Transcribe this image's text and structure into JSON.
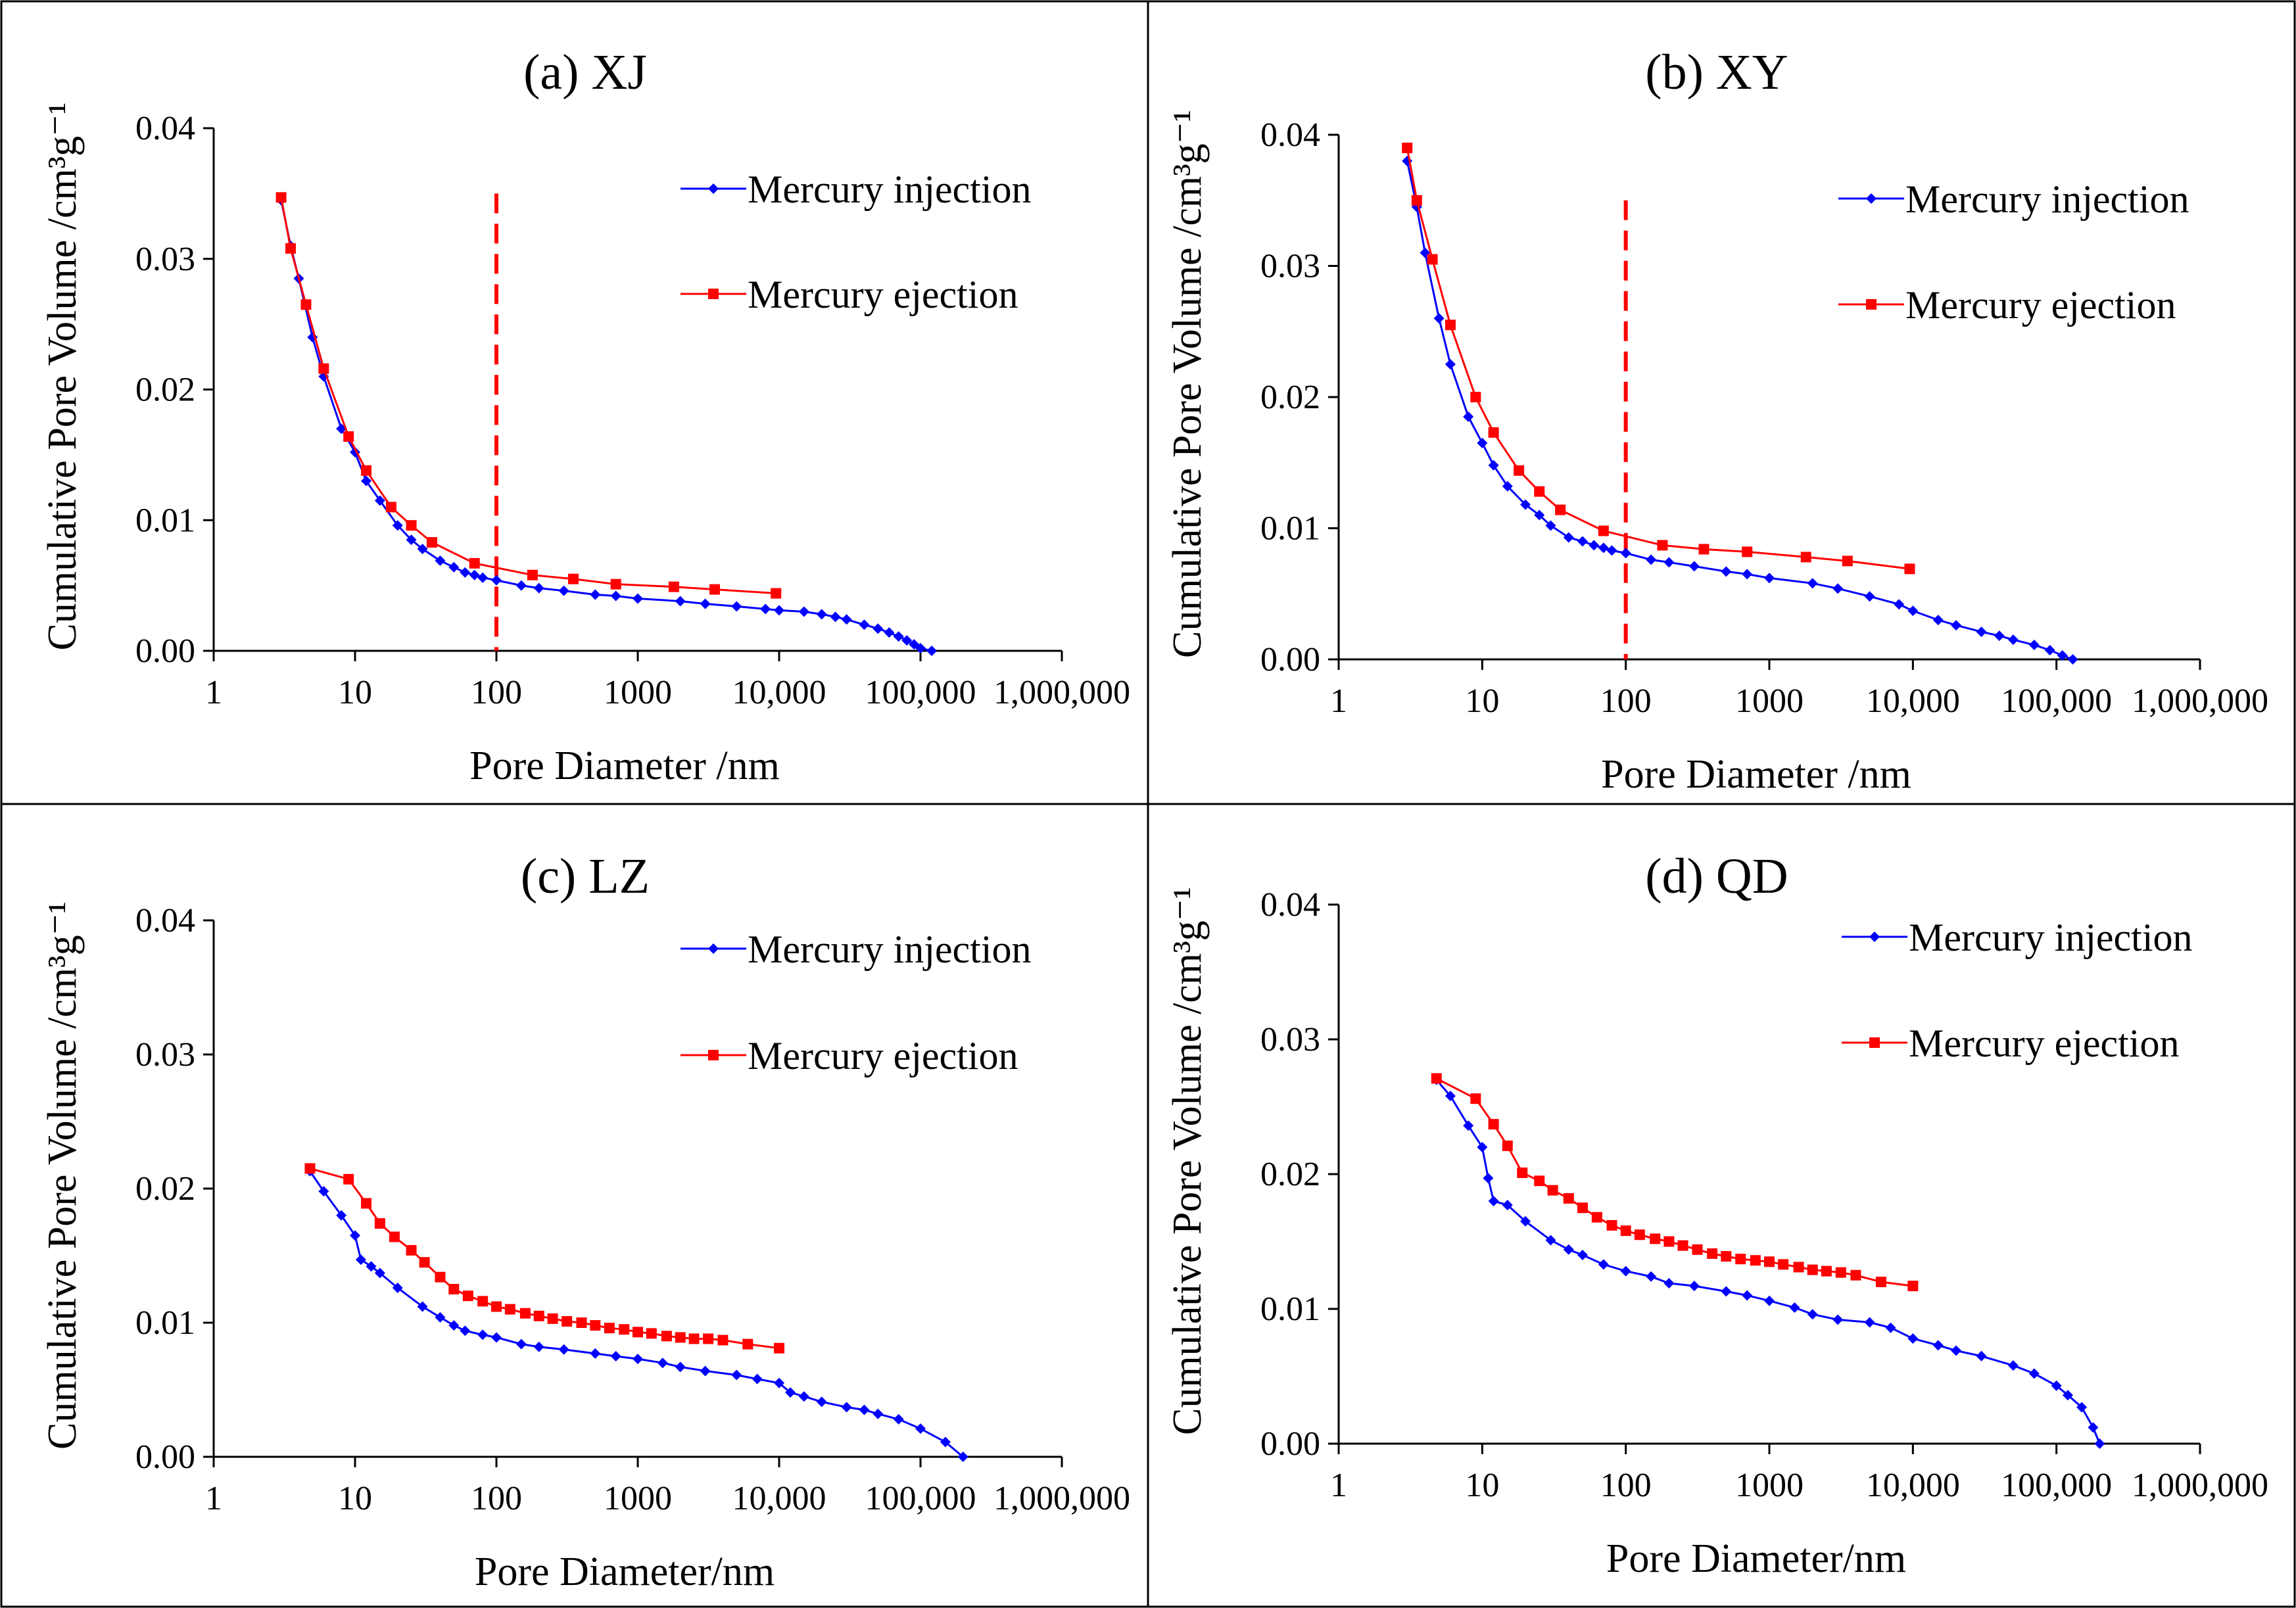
{
  "figure": {
    "x_tick_labels": [
      "1",
      "10",
      "100",
      "1000",
      "10,000",
      "100,000",
      "1,000,000"
    ],
    "y_tick_labels": [
      "0.00",
      "0.01",
      "0.02",
      "0.03",
      "0.04"
    ],
    "xlabel": "Pore Diameter /nm",
    "ylabel": "Cumulative Pore Volume /cm³g⁻¹",
    "legend": [
      "Mercury injection",
      "Mercury ejection"
    ],
    "colors": {
      "injection": "#0000ff",
      "ejection": "#ff0000",
      "marker_line": "#ff0000"
    }
  },
  "chart_data": [
    {
      "type": "line",
      "title": "(a) XJ",
      "xlabel": "Pore Diameter /nm",
      "ylabel": "Cumulative Pore Volume /cm³g⁻¹",
      "x_scale": "log",
      "xlim": [
        1,
        1000000
      ],
      "ylim": [
        0,
        0.04
      ],
      "legend_position": "top-right",
      "vline_x": 100,
      "series": [
        {
          "name": "Mercury injection",
          "x": [
            3,
            3.5,
            4,
            5,
            6,
            8,
            10,
            12,
            15,
            20,
            25,
            30,
            40,
            50,
            60,
            70,
            80,
            100,
            150,
            200,
            300,
            500,
            700,
            1000,
            2000,
            3000,
            5000,
            8000,
            10000,
            15000,
            20000,
            25000,
            30000,
            40000,
            50000,
            60000,
            70000,
            80000,
            90000,
            100000,
            120000
          ],
          "y": [
            0.0345,
            0.031,
            0.0285,
            0.024,
            0.021,
            0.017,
            0.0152,
            0.013,
            0.0115,
            0.0096,
            0.0085,
            0.0078,
            0.0069,
            0.0064,
            0.006,
            0.0058,
            0.0056,
            0.0054,
            0.005,
            0.0048,
            0.0046,
            0.0043,
            0.0042,
            0.004,
            0.0038,
            0.0036,
            0.0034,
            0.0032,
            0.0031,
            0.003,
            0.0028,
            0.0026,
            0.0024,
            0.002,
            0.0017,
            0.0014,
            0.0011,
            0.0008,
            0.0005,
            0.0002,
            0.0
          ]
        },
        {
          "name": "Mercury ejection",
          "x": [
            3,
            3.5,
            4.5,
            6,
            9,
            12,
            18,
            25,
            35,
            70,
            180,
            350,
            700,
            1800,
            3500,
            9500
          ],
          "y": [
            0.0347,
            0.0308,
            0.0265,
            0.0216,
            0.0164,
            0.0138,
            0.011,
            0.0096,
            0.0083,
            0.0067,
            0.0058,
            0.0055,
            0.0051,
            0.0049,
            0.0047,
            0.0044
          ]
        }
      ]
    },
    {
      "type": "line",
      "title": "(b) XY",
      "xlabel": "Pore Diameter /nm",
      "ylabel": "Cumulative Pore Volume /cm³g⁻¹",
      "x_scale": "log",
      "xlim": [
        1,
        1000000
      ],
      "ylim": [
        0,
        0.04
      ],
      "legend_position": "top-right",
      "vline_x": 100,
      "series": [
        {
          "name": "Mercury injection",
          "x": [
            3,
            3.5,
            4,
            5,
            6,
            8,
            10,
            12,
            15,
            20,
            25,
            30,
            40,
            50,
            60,
            70,
            80,
            100,
            150,
            200,
            300,
            500,
            700,
            1000,
            2000,
            3000,
            5000,
            8000,
            10000,
            15000,
            20000,
            30000,
            40000,
            50000,
            70000,
            90000,
            110000,
            130000
          ],
          "y": [
            0.038,
            0.0345,
            0.031,
            0.026,
            0.0225,
            0.0185,
            0.0165,
            0.0148,
            0.0132,
            0.0118,
            0.011,
            0.0102,
            0.0093,
            0.009,
            0.0087,
            0.0085,
            0.0083,
            0.0081,
            0.0076,
            0.0074,
            0.0071,
            0.0067,
            0.0065,
            0.0062,
            0.0058,
            0.0054,
            0.0048,
            0.0042,
            0.0037,
            0.003,
            0.0026,
            0.0021,
            0.0018,
            0.0015,
            0.0011,
            0.0007,
            0.0003,
            0.0
          ]
        },
        {
          "name": "Mercury ejection",
          "x": [
            3,
            3.5,
            4.5,
            6,
            9,
            12,
            18,
            25,
            35,
            70,
            180,
            350,
            700,
            1800,
            3500,
            9500
          ],
          "y": [
            0.039,
            0.035,
            0.0305,
            0.0255,
            0.02,
            0.0173,
            0.0144,
            0.0128,
            0.0114,
            0.0098,
            0.0087,
            0.0084,
            0.0082,
            0.0078,
            0.0075,
            0.0069
          ]
        }
      ]
    },
    {
      "type": "line",
      "title": "(c) LZ",
      "xlabel": "Pore Diameter/nm",
      "ylabel": "Cumulative Pore Volume /cm³g⁻¹",
      "x_scale": "log",
      "xlim": [
        1,
        1000000
      ],
      "ylim": [
        0,
        0.04
      ],
      "legend_position": "top-right",
      "series": [
        {
          "name": "Mercury injection",
          "x": [
            4.8,
            6,
            8,
            10,
            11,
            13,
            15,
            20,
            30,
            40,
            50,
            60,
            80,
            100,
            150,
            200,
            300,
            500,
            700,
            1000,
            1500,
            2000,
            3000,
            5000,
            7000,
            10000,
            12000,
            15000,
            20000,
            30000,
            40000,
            50000,
            70000,
            100000,
            150000,
            200000
          ],
          "y": [
            0.0213,
            0.0198,
            0.018,
            0.0165,
            0.0147,
            0.0142,
            0.0137,
            0.0126,
            0.0112,
            0.0104,
            0.0098,
            0.0094,
            0.0091,
            0.0089,
            0.0084,
            0.0082,
            0.008,
            0.0077,
            0.0075,
            0.0073,
            0.007,
            0.0067,
            0.0064,
            0.0061,
            0.0058,
            0.0055,
            0.0048,
            0.0045,
            0.0041,
            0.0037,
            0.0035,
            0.0032,
            0.0028,
            0.0021,
            0.0011,
            0.0
          ]
        },
        {
          "name": "Mercury ejection",
          "x": [
            4.8,
            9,
            12,
            15,
            19,
            25,
            31,
            40,
            50,
            63,
            80,
            100,
            125,
            160,
            200,
            250,
            315,
            400,
            500,
            630,
            800,
            1000,
            1250,
            1600,
            2000,
            2500,
            3150,
            4000,
            6000,
            10000
          ],
          "y": [
            0.0215,
            0.0207,
            0.0189,
            0.0174,
            0.0164,
            0.0154,
            0.0145,
            0.0134,
            0.0125,
            0.012,
            0.0116,
            0.0112,
            0.011,
            0.0107,
            0.0105,
            0.0103,
            0.0101,
            0.01,
            0.0098,
            0.0096,
            0.0095,
            0.0093,
            0.0092,
            0.009,
            0.0089,
            0.0088,
            0.0088,
            0.0087,
            0.0084,
            0.0081
          ]
        }
      ]
    },
    {
      "type": "line",
      "title": "(d) QD",
      "xlabel": "Pore Diameter/nm",
      "ylabel": "Cumulative Pore Volume /cm³g⁻¹",
      "x_scale": "log",
      "xlim": [
        1,
        1000000
      ],
      "ylim": [
        0,
        0.04
      ],
      "legend_position": "top-right",
      "series": [
        {
          "name": "Mercury injection",
          "x": [
            4.8,
            6,
            8,
            10,
            11,
            12,
            15,
            20,
            30,
            40,
            50,
            70,
            100,
            150,
            200,
            300,
            500,
            700,
            1000,
            1500,
            2000,
            3000,
            5000,
            7000,
            10000,
            15000,
            20000,
            30000,
            50000,
            70000,
            100000,
            120000,
            150000,
            180000,
            200000
          ],
          "y": [
            0.027,
            0.0258,
            0.0236,
            0.022,
            0.0197,
            0.018,
            0.0177,
            0.0165,
            0.0151,
            0.0144,
            0.014,
            0.0133,
            0.0128,
            0.0124,
            0.0119,
            0.0117,
            0.0113,
            0.011,
            0.0106,
            0.0101,
            0.0096,
            0.0092,
            0.009,
            0.0086,
            0.0078,
            0.0073,
            0.0069,
            0.0065,
            0.0058,
            0.0052,
            0.0043,
            0.0036,
            0.0027,
            0.0012,
            0.0
          ]
        },
        {
          "name": "Mercury ejection",
          "x": [
            4.8,
            9,
            12,
            15,
            19,
            25,
            31,
            40,
            50,
            63,
            80,
            100,
            125,
            160,
            200,
            250,
            315,
            400,
            500,
            630,
            800,
            1000,
            1250,
            1600,
            2000,
            2500,
            3150,
            4000,
            6000,
            10000
          ],
          "y": [
            0.0271,
            0.0256,
            0.0237,
            0.0221,
            0.0201,
            0.0195,
            0.0188,
            0.0182,
            0.0175,
            0.0168,
            0.0162,
            0.0158,
            0.0155,
            0.0152,
            0.015,
            0.0147,
            0.0144,
            0.0141,
            0.0139,
            0.0137,
            0.0136,
            0.0135,
            0.0133,
            0.0131,
            0.0129,
            0.0128,
            0.0127,
            0.0125,
            0.012,
            0.0117
          ]
        }
      ]
    }
  ]
}
